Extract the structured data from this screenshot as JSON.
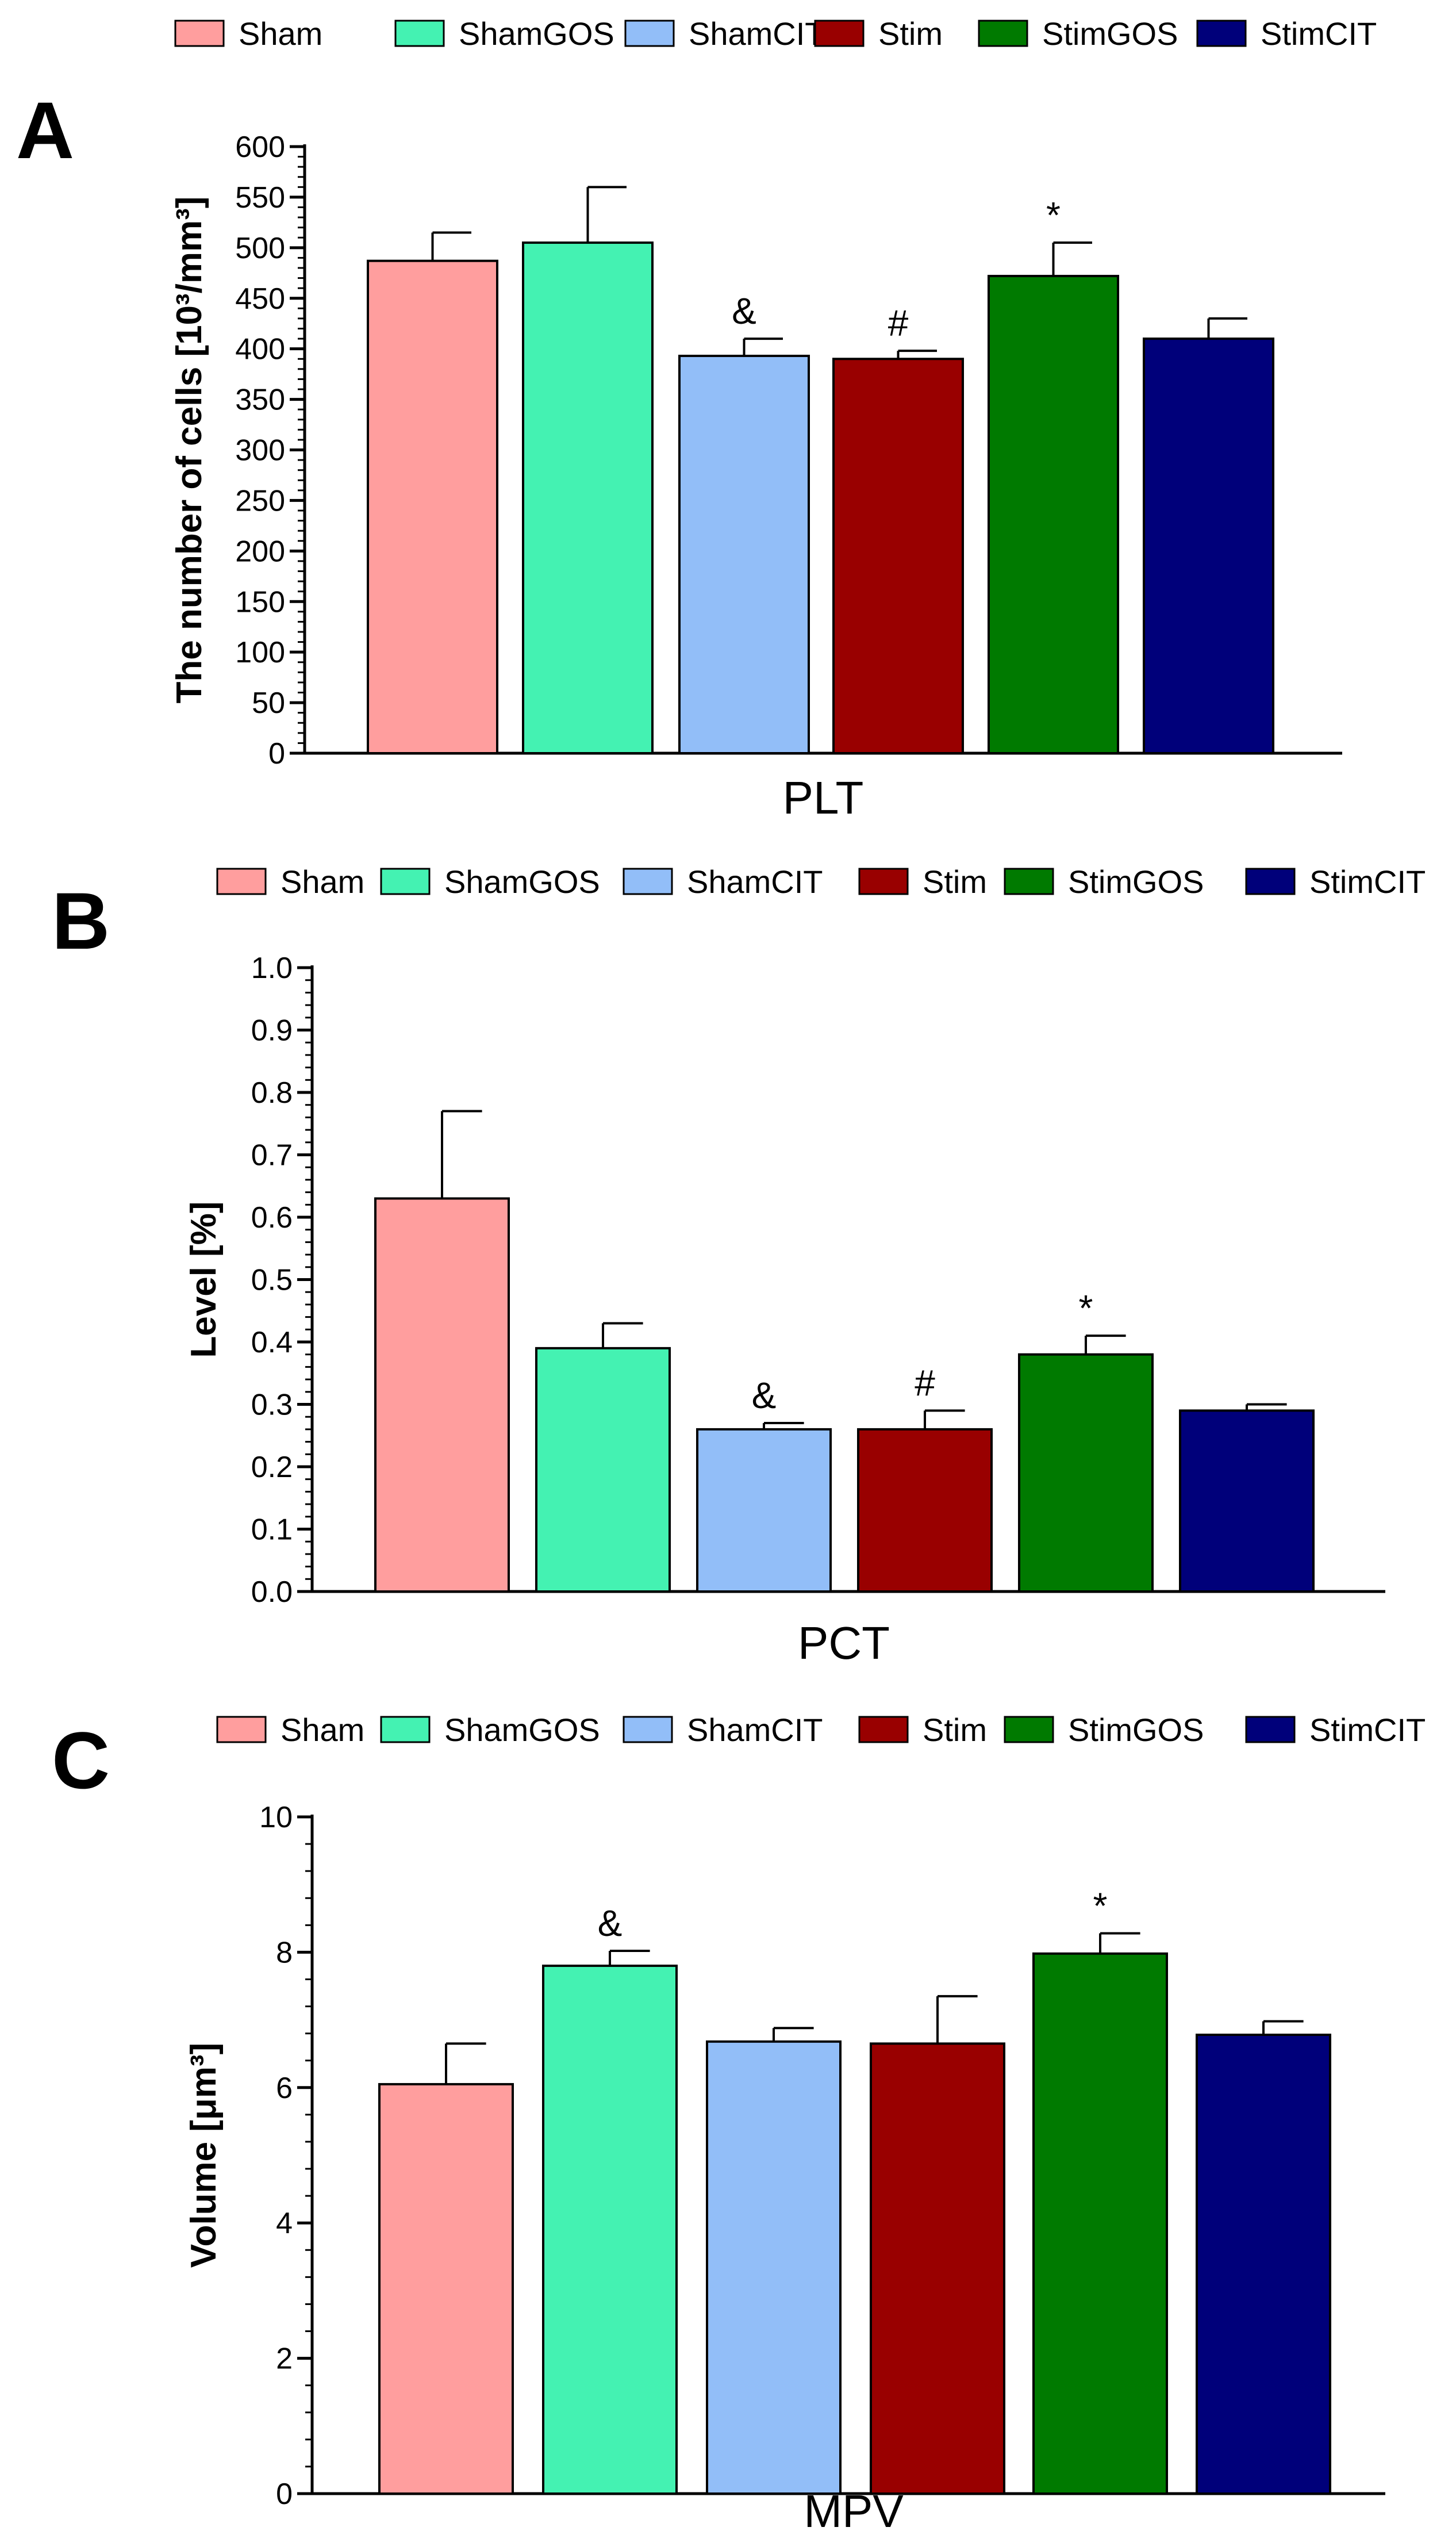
{
  "groups": [
    {
      "name": "Sham",
      "color": "#FF9E9E"
    },
    {
      "name": "ShamGOS",
      "color": "#44F2B2"
    },
    {
      "name": "ShamCIT",
      "color": "#92BEF8"
    },
    {
      "name": "Stim",
      "color": "#990000"
    },
    {
      "name": "StimGOS",
      "color": "#007A00"
    },
    {
      "name": "StimCIT",
      "color": "#00007A"
    }
  ],
  "chart_data": [
    {
      "type": "bar",
      "panel": "A",
      "xlabel": "PLT",
      "ylabel": "The number of cells [10³/mm³]",
      "categories": [
        "Sham",
        "ShamGOS",
        "ShamCIT",
        "Stim",
        "StimGOS",
        "StimCIT"
      ],
      "values": [
        487,
        505,
        393,
        390,
        472,
        410
      ],
      "errors": [
        28,
        55,
        17,
        8,
        33,
        20
      ],
      "significance": [
        "",
        "",
        "&",
        "#",
        "*",
        ""
      ],
      "ylim": [
        0,
        600
      ],
      "major_ticks": [
        0,
        50,
        100,
        150,
        200,
        250,
        300,
        350,
        400,
        450,
        500,
        550,
        600
      ],
      "tick_labels": [
        "0",
        "50",
        "100",
        "150",
        "200",
        "250",
        "300",
        "350",
        "400",
        "450",
        "500",
        "550",
        "600"
      ],
      "minor_step": 10
    },
    {
      "type": "bar",
      "panel": "B",
      "xlabel": "PCT",
      "ylabel": "Level [%]",
      "categories": [
        "Sham",
        "ShamGOS",
        "ShamCIT",
        "Stim",
        "StimGOS",
        "StimCIT"
      ],
      "values": [
        0.63,
        0.39,
        0.26,
        0.26,
        0.38,
        0.29
      ],
      "errors": [
        0.14,
        0.04,
        0.01,
        0.03,
        0.03,
        0.01
      ],
      "significance": [
        "",
        "",
        "&",
        "#",
        "*",
        ""
      ],
      "ylim": [
        0,
        1.0
      ],
      "major_ticks": [
        0,
        0.1,
        0.2,
        0.3,
        0.4,
        0.5,
        0.6,
        0.7,
        0.8,
        0.9,
        1.0
      ],
      "tick_labels": [
        "0.0",
        "0.1",
        "0.2",
        "0.3",
        "0.4",
        "0.5",
        "0.6",
        "0.7",
        "0.8",
        "0.9",
        "1.0"
      ],
      "minor_step": 0.02
    },
    {
      "type": "bar",
      "panel": "C",
      "xlabel": "MPV",
      "ylabel": "Volume [μm³]",
      "categories": [
        "Sham",
        "ShamGOS",
        "ShamCIT",
        "Stim",
        "StimGOS",
        "StimCIT"
      ],
      "values": [
        6.05,
        7.8,
        6.68,
        6.65,
        7.98,
        6.78
      ],
      "errors": [
        0.6,
        0.22,
        0.2,
        0.7,
        0.3,
        0.2
      ],
      "significance": [
        "",
        "&",
        "",
        "",
        "*",
        ""
      ],
      "ylim": [
        0,
        10
      ],
      "major_ticks": [
        0,
        2,
        4,
        6,
        8,
        10
      ],
      "tick_labels": [
        "0",
        "2",
        "4",
        "6",
        "8",
        "10"
      ],
      "minor_step": 0.4
    }
  ]
}
